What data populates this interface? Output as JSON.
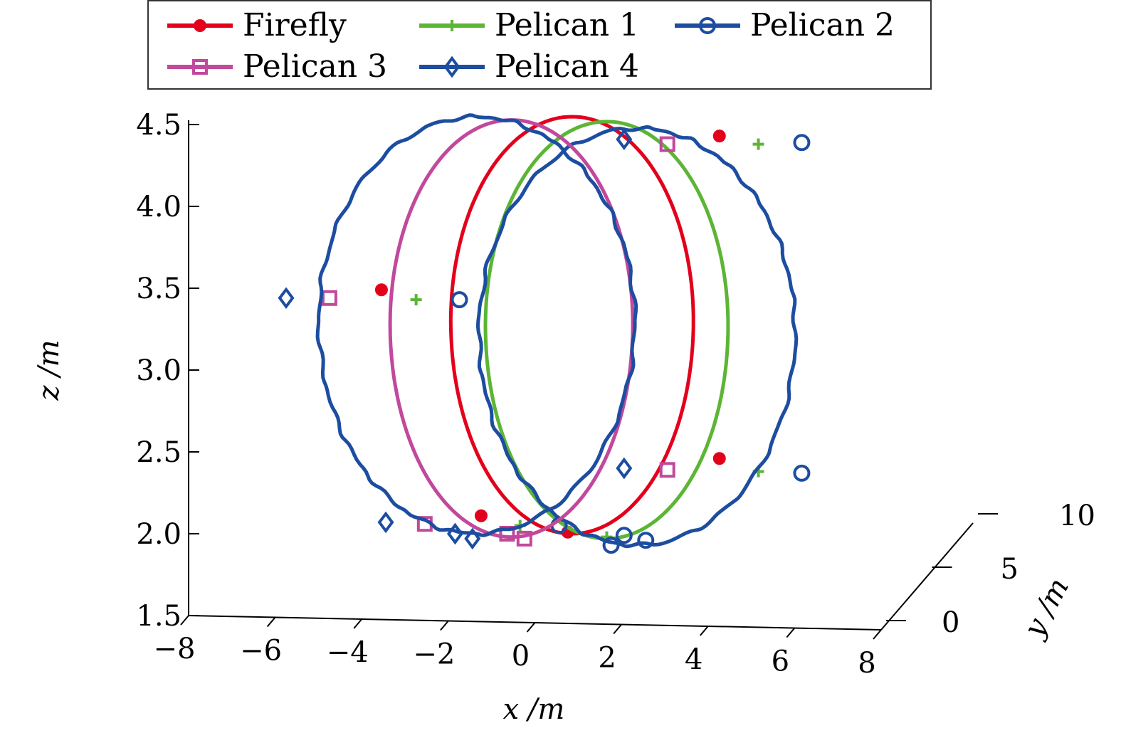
{
  "chart_data": {
    "type": "line",
    "variant": "3d-trajectory",
    "xlabel": "x /m",
    "ylabel": "y /m",
    "zlabel": "z /m",
    "xlim": [
      -8,
      8
    ],
    "ylim": [
      0,
      10
    ],
    "zlim": [
      1.5,
      4.5
    ],
    "xticks": [
      "−8",
      "−6",
      "−4",
      "−2",
      "0",
      "2",
      "4",
      "6",
      "8"
    ],
    "yticks": [
      "0",
      "5",
      "10"
    ],
    "zticks": [
      "1.5",
      "2.0",
      "2.5",
      "3.0",
      "3.5",
      "4.0",
      "4.5"
    ],
    "grid": false,
    "legend_position": "top",
    "series": [
      {
        "name": "Firefly",
        "color": "#e3001b",
        "marker": "filled-circle",
        "center_x": 0.9,
        "radius_x": 5.6,
        "z_center": 3.3,
        "z_radius": 1.3,
        "markers": [
          [
            -3.5,
            3.49
          ],
          [
            -1.2,
            2.11
          ],
          [
            4.3,
            4.43
          ],
          [
            4.3,
            2.46
          ],
          [
            0.8,
            2.01
          ]
        ]
      },
      {
        "name": "Pelican 1",
        "color": "#5cb535",
        "marker": "plus",
        "center_x": 1.7,
        "radius_x": 5.6,
        "z_center": 3.27,
        "z_radius": 1.3,
        "markers": [
          [
            -2.7,
            3.43
          ],
          [
            -0.3,
            2.05
          ],
          [
            5.2,
            4.38
          ],
          [
            5.2,
            2.38
          ],
          [
            1.7,
            1.98
          ]
        ]
      },
      {
        "name": "Pelican 2",
        "color": "#1c4da1",
        "marker": "open-circle",
        "center_x": 2.4,
        "radius_x": 7.3,
        "z_center": 3.23,
        "z_radius": 1.3,
        "markers": [
          [
            -1.7,
            3.43
          ],
          [
            0.6,
            2.05
          ],
          [
            6.2,
            4.39
          ],
          [
            6.2,
            2.37
          ],
          [
            2.1,
            1.99
          ],
          [
            2.6,
            1.96
          ],
          [
            1.8,
            1.93
          ]
        ]
      },
      {
        "name": "Pelican 3",
        "color": "#c2489c",
        "marker": "open-square",
        "center_x": -0.5,
        "radius_x": 5.6,
        "z_center": 3.28,
        "z_radius": 1.3,
        "markers": [
          [
            -4.7,
            3.44
          ],
          [
            -2.5,
            2.06
          ],
          [
            3.1,
            4.38
          ],
          [
            3.1,
            2.39
          ],
          [
            -0.6,
            2.0
          ],
          [
            -0.2,
            1.97
          ]
        ]
      },
      {
        "name": "Pelican 4",
        "color": "#1c4da1",
        "marker": "open-diamond",
        "center_x": -1.3,
        "radius_x": 7.3,
        "z_center": 3.3,
        "z_radius": 1.3,
        "markers": [
          [
            -5.7,
            3.44
          ],
          [
            -3.4,
            2.07
          ],
          [
            2.1,
            4.41
          ],
          [
            2.1,
            2.4
          ],
          [
            -1.8,
            2.0
          ],
          [
            -1.4,
            1.97
          ]
        ]
      }
    ]
  }
}
